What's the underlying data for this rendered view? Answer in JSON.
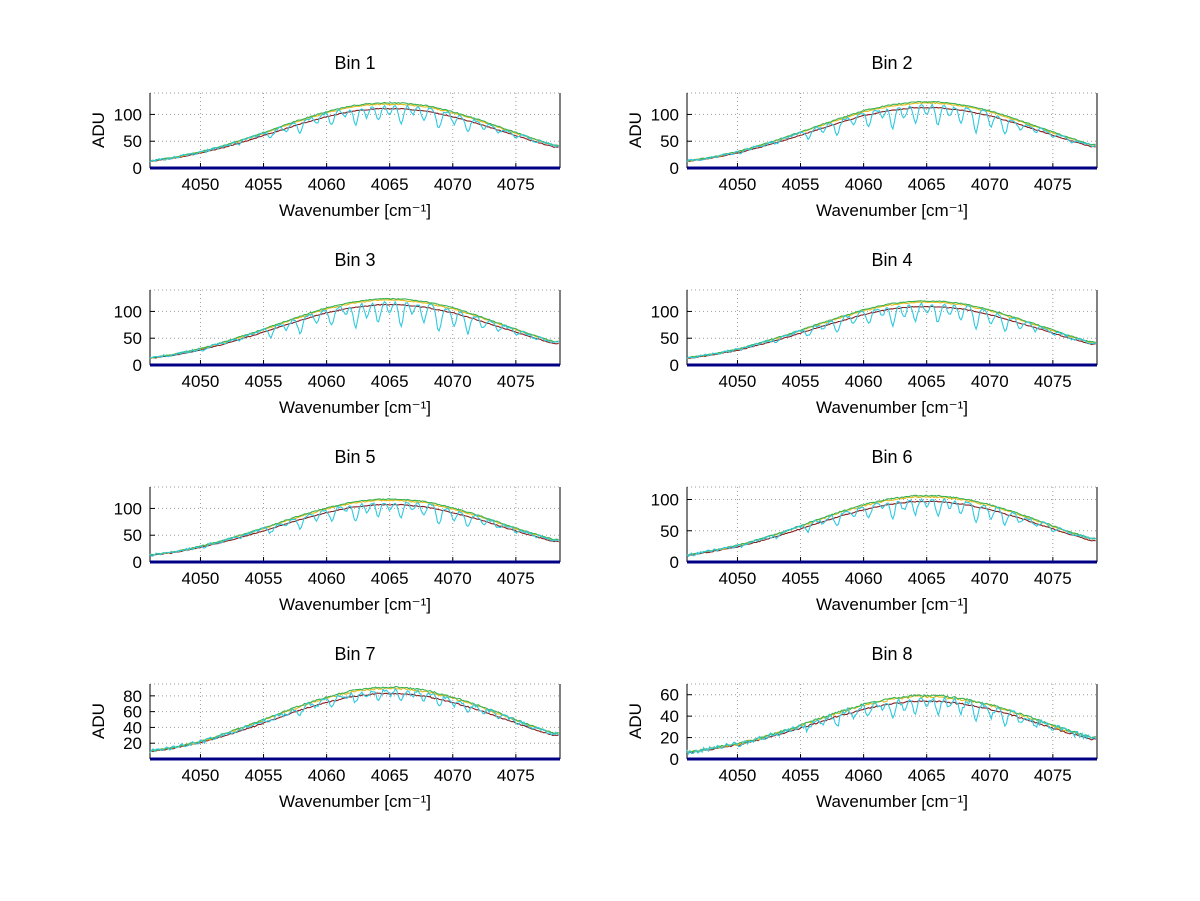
{
  "style": {
    "colors": {
      "cyan": "#2ec9df",
      "yellow": "#e2bb1c",
      "green": "#3bb253",
      "red": "#8b1f1f",
      "navy": "#000084"
    },
    "grid_color": "#9e9e9e"
  },
  "series_factors": {
    "red": 0.93,
    "yellow": 1.0,
    "green": 1.02,
    "cyan": 0.99
  },
  "x_points": [
    4046,
    4048,
    4050,
    4052,
    4054,
    4056,
    4058,
    4060,
    4062,
    4064,
    4066,
    4068,
    4070,
    4072,
    4074,
    4076,
    4078
  ],
  "absorption_lines": [
    {
      "x": 4050.3,
      "depth": 0.06
    },
    {
      "x": 4053.1,
      "depth": 0.09
    },
    {
      "x": 4055.6,
      "depth": 0.18
    },
    {
      "x": 4056.8,
      "depth": 0.12
    },
    {
      "x": 4057.9,
      "depth": 0.25
    },
    {
      "x": 4059.2,
      "depth": 0.15
    },
    {
      "x": 4060.4,
      "depth": 0.22
    },
    {
      "x": 4061.5,
      "depth": 0.12
    },
    {
      "x": 4062.3,
      "depth": 0.3
    },
    {
      "x": 4063.2,
      "depth": 0.18
    },
    {
      "x": 4064.1,
      "depth": 0.25
    },
    {
      "x": 4065.0,
      "depth": 0.15
    },
    {
      "x": 4065.9,
      "depth": 0.28
    },
    {
      "x": 4066.8,
      "depth": 0.14
    },
    {
      "x": 4067.7,
      "depth": 0.22
    },
    {
      "x": 4068.9,
      "depth": 0.32
    },
    {
      "x": 4070.1,
      "depth": 0.2
    },
    {
      "x": 4071.2,
      "depth": 0.28
    },
    {
      "x": 4072.4,
      "depth": 0.15
    },
    {
      "x": 4073.6,
      "depth": 0.12
    },
    {
      "x": 4075.0,
      "depth": 0.1
    },
    {
      "x": 4076.5,
      "depth": 0.07
    }
  ],
  "chart_data": [
    {
      "type": "line",
      "title": "Bin 1",
      "xlabel": "Wavenumber [cm⁻¹]",
      "ylabel": "ADU",
      "xlim": [
        4046,
        4078.5
      ],
      "ylim": [
        0,
        140
      ],
      "xticks": [
        4050,
        4055,
        4060,
        4065,
        4070,
        4075
      ],
      "yticks": [
        0,
        50,
        100
      ],
      "peak_adu": 120,
      "dip_scale": 1.0,
      "envelope": [
        13,
        20,
        30,
        42,
        57,
        73,
        89,
        103,
        114,
        119,
        119,
        114,
        103,
        89,
        73,
        57,
        42
      ]
    },
    {
      "type": "line",
      "title": "Bin 2",
      "xlabel": "Wavenumber [cm⁻¹]",
      "ylabel": "ADU",
      "xlim": [
        4046,
        4078.5
      ],
      "ylim": [
        0,
        140
      ],
      "xticks": [
        4050,
        4055,
        4060,
        4065,
        4070,
        4075
      ],
      "yticks": [
        0,
        50,
        100
      ],
      "peak_adu": 122,
      "dip_scale": 1.2,
      "envelope": [
        13,
        20,
        30,
        43,
        58,
        74,
        90,
        105,
        115,
        121,
        121,
        115,
        105,
        90,
        74,
        58,
        43
      ]
    },
    {
      "type": "line",
      "title": "Bin 3",
      "xlabel": "Wavenumber [cm⁻¹]",
      "ylabel": "",
      "xlim": [
        4046,
        4078.5
      ],
      "ylim": [
        0,
        140
      ],
      "xticks": [
        4050,
        4055,
        4060,
        4065,
        4070,
        4075
      ],
      "yticks": [
        0,
        50,
        100
      ],
      "peak_adu": 122,
      "dip_scale": 1.35,
      "envelope": [
        13,
        20,
        30,
        43,
        58,
        74,
        90,
        105,
        115,
        121,
        121,
        115,
        105,
        90,
        74,
        58,
        43
      ]
    },
    {
      "type": "line",
      "title": "Bin 4",
      "xlabel": "Wavenumber [cm⁻¹]",
      "ylabel": "",
      "xlim": [
        4046,
        4078.5
      ],
      "ylim": [
        0,
        140
      ],
      "xticks": [
        4050,
        4055,
        4060,
        4065,
        4070,
        4075
      ],
      "yticks": [
        0,
        50,
        100
      ],
      "peak_adu": 118,
      "dip_scale": 1.15,
      "envelope": [
        13,
        20,
        29,
        42,
        56,
        72,
        87,
        101,
        112,
        117,
        117,
        112,
        101,
        87,
        72,
        56,
        42
      ]
    },
    {
      "type": "line",
      "title": "Bin 5",
      "xlabel": "Wavenumber [cm⁻¹]",
      "ylabel": "",
      "xlim": [
        4046,
        4078.5
      ],
      "ylim": [
        0,
        140
      ],
      "xticks": [
        4050,
        4055,
        4060,
        4065,
        4070,
        4075
      ],
      "yticks": [
        0,
        50,
        100
      ],
      "peak_adu": 116,
      "dip_scale": 1.0,
      "envelope": [
        13,
        19,
        29,
        41,
        55,
        70,
        86,
        99,
        110,
        115,
        115,
        110,
        99,
        86,
        70,
        55,
        41
      ]
    },
    {
      "type": "line",
      "title": "Bin 6",
      "xlabel": "Wavenumber [cm⁻¹]",
      "ylabel": "",
      "xlim": [
        4046,
        4078.5
      ],
      "ylim": [
        0,
        120
      ],
      "xticks": [
        4050,
        4055,
        4060,
        4065,
        4070,
        4075
      ],
      "yticks": [
        0,
        50,
        100
      ],
      "peak_adu": 105,
      "dip_scale": 1.0,
      "envelope": [
        11,
        18,
        26,
        37,
        50,
        64,
        78,
        90,
        99,
        104,
        104,
        99,
        90,
        78,
        64,
        50,
        37
      ]
    },
    {
      "type": "line",
      "title": "Bin 7",
      "xlabel": "Wavenumber [cm⁻¹]",
      "ylabel": "ADU",
      "xlim": [
        4046,
        4078.5
      ],
      "ylim": [
        0,
        95
      ],
      "xticks": [
        4050,
        4055,
        4060,
        4065,
        4070,
        4075
      ],
      "yticks": [
        20,
        40,
        60,
        80
      ],
      "peak_adu": 90,
      "dip_scale": 0.55,
      "envelope": [
        10,
        15,
        22,
        32,
        43,
        55,
        67,
        77,
        85,
        89,
        89,
        85,
        77,
        67,
        55,
        43,
        32
      ]
    },
    {
      "type": "line",
      "title": "Bin 8",
      "xlabel": "Wavenumber [cm⁻¹]",
      "ylabel": "ADU",
      "xlim": [
        4046,
        4078.5
      ],
      "ylim": [
        0,
        70
      ],
      "xticks": [
        4050,
        4055,
        4060,
        4065,
        4070,
        4075
      ],
      "yticks": [
        0,
        20,
        40,
        60
      ],
      "peak_adu": 58,
      "dip_scale": 1.0,
      "envelope": [
        6,
        10,
        14,
        20,
        27,
        35,
        43,
        50,
        55,
        58,
        58,
        55,
        50,
        43,
        35,
        27,
        20
      ]
    }
  ]
}
